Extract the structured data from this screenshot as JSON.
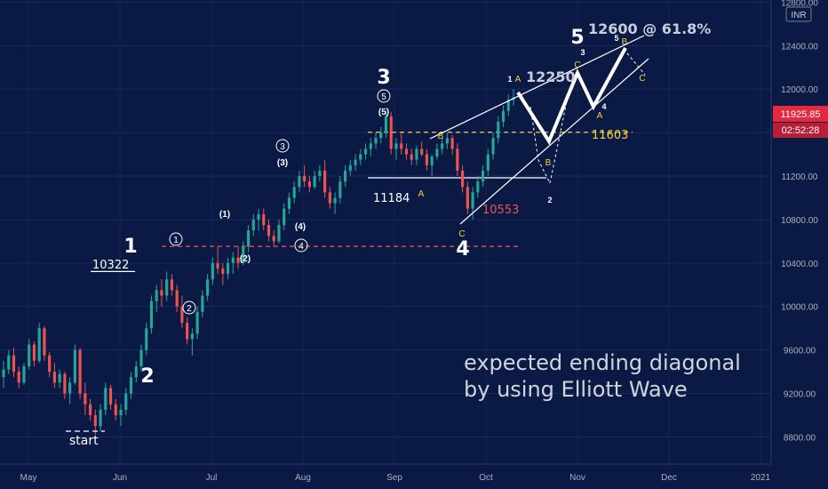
{
  "chart_data": {
    "type": "candlestick",
    "currency_badge": "INR",
    "last_price": "11925.85",
    "countdown": "02:52:28",
    "colors": {
      "background": "#0b1a44",
      "up": "#26a69a",
      "down": "#ef5350",
      "price_badge": "#e5283f",
      "annotation_yellow": "#f4d03f",
      "annotation_red": "#ef5350"
    },
    "ylim": [
      8550,
      12820
    ],
    "y_ticks": [
      8800,
      9200,
      9600,
      10000,
      10400,
      10800,
      11200,
      11600,
      12000,
      12400,
      12800
    ],
    "y_tick_labels": [
      "8800.00",
      "9200.00",
      "9600.00",
      "10000.00",
      "10400.00",
      "10800.00",
      "11200.00",
      "11600.00",
      "12000.00",
      "12400.00",
      "12800.00"
    ],
    "x_labels": [
      "May",
      "Jun",
      "Jul",
      "Aug",
      "Sep",
      "Oct",
      "Nov",
      "Dec",
      "2021"
    ],
    "candles": [
      [
        9350,
        9500,
        9250,
        9420
      ],
      [
        9420,
        9600,
        9380,
        9550
      ],
      [
        9550,
        9620,
        9350,
        9400
      ],
      [
        9400,
        9450,
        9250,
        9300
      ],
      [
        9300,
        9480,
        9280,
        9450
      ],
      [
        9450,
        9700,
        9420,
        9650
      ],
      [
        9650,
        9680,
        9450,
        9500
      ],
      [
        9500,
        9850,
        9480,
        9800
      ],
      [
        9800,
        9820,
        9500,
        9550
      ],
      [
        9550,
        9580,
        9350,
        9400
      ],
      [
        9400,
        9480,
        9250,
        9300
      ],
      [
        9300,
        9420,
        9250,
        9380
      ],
      [
        9380,
        9400,
        9150,
        9200
      ],
      [
        9200,
        9350,
        9100,
        9300
      ],
      [
        9300,
        9650,
        9280,
        9600
      ],
      [
        9600,
        9620,
        9150,
        9200
      ],
      [
        9200,
        9300,
        9000,
        9100
      ],
      [
        9100,
        9150,
        8950,
        9000
      ],
      [
        9000,
        9050,
        8820,
        8900
      ],
      [
        8900,
        9100,
        8850,
        9050
      ],
      [
        9050,
        9300,
        9000,
        9250
      ],
      [
        9250,
        9280,
        9050,
        9100
      ],
      [
        9100,
        9150,
        8950,
        9000
      ],
      [
        9000,
        9100,
        8900,
        9050
      ],
      [
        9050,
        9250,
        9000,
        9200
      ],
      [
        9200,
        9400,
        9150,
        9350
      ],
      [
        9350,
        9500,
        9300,
        9450
      ],
      [
        9450,
        9650,
        9400,
        9600
      ],
      [
        9600,
        9850,
        9550,
        9800
      ],
      [
        9800,
        10100,
        9750,
        10050
      ],
      [
        10050,
        10200,
        9950,
        10150
      ],
      [
        10150,
        10250,
        10000,
        10100
      ],
      [
        10100,
        10322,
        10050,
        10250
      ],
      [
        10250,
        10300,
        10100,
        10150
      ],
      [
        10150,
        10200,
        9950,
        10000
      ],
      [
        10000,
        10100,
        9800,
        9850
      ],
      [
        9850,
        9900,
        9650,
        9700
      ],
      [
        9700,
        9800,
        9550,
        9750
      ],
      [
        9750,
        10000,
        9700,
        9950
      ],
      [
        9950,
        10150,
        9900,
        10100
      ],
      [
        10100,
        10300,
        10050,
        10250
      ],
      [
        10250,
        10450,
        10200,
        10400
      ],
      [
        10400,
        10550,
        10300,
        10350
      ],
      [
        10350,
        10400,
        10200,
        10300
      ],
      [
        10300,
        10450,
        10250,
        10400
      ],
      [
        10400,
        10500,
        10300,
        10450
      ],
      [
        10450,
        10550,
        10350,
        10400
      ],
      [
        10400,
        10600,
        10380,
        10550
      ],
      [
        10550,
        10750,
        10500,
        10700
      ],
      [
        10700,
        10850,
        10650,
        10800
      ],
      [
        10800,
        10900,
        10700,
        10850
      ],
      [
        10850,
        10900,
        10700,
        10750
      ],
      [
        10750,
        10800,
        10600,
        10650
      ],
      [
        10650,
        10700,
        10550,
        10600
      ],
      [
        10600,
        10800,
        10580,
        10750
      ],
      [
        10750,
        10950,
        10700,
        10900
      ],
      [
        10900,
        11050,
        10850,
        11000
      ],
      [
        11000,
        11150,
        10950,
        11100
      ],
      [
        11100,
        11250,
        11050,
        11200
      ],
      [
        11200,
        11300,
        11100,
        11150
      ],
      [
        11150,
        11200,
        11050,
        11100
      ],
      [
        11100,
        11250,
        11080,
        11200
      ],
      [
        11200,
        11300,
        11150,
        11250
      ],
      [
        11250,
        11350,
        11000,
        11050
      ],
      [
        11050,
        11100,
        10900,
        10950
      ],
      [
        10950,
        11050,
        10850,
        11000
      ],
      [
        11000,
        11200,
        10950,
        11150
      ],
      [
        11150,
        11300,
        11100,
        11250
      ],
      [
        11250,
        11350,
        11200,
        11300
      ],
      [
        11300,
        11400,
        11250,
        11350
      ],
      [
        11350,
        11450,
        11300,
        11400
      ],
      [
        11400,
        11500,
        11350,
        11450
      ],
      [
        11450,
        11550,
        11380,
        11500
      ],
      [
        11500,
        11600,
        11450,
        11550
      ],
      [
        11550,
        11650,
        11500,
        11600
      ],
      [
        11600,
        11800,
        11550,
        11750
      ],
      [
        11750,
        11790,
        11400,
        11450
      ],
      [
        11450,
        11550,
        11350,
        11500
      ],
      [
        11500,
        11600,
        11400,
        11450
      ],
      [
        11450,
        11500,
        11350,
        11400
      ],
      [
        11400,
        11450,
        11300,
        11350
      ],
      [
        11350,
        11480,
        11300,
        11450
      ],
      [
        11450,
        11520,
        11380,
        11400
      ],
      [
        11400,
        11450,
        11250,
        11300
      ],
      [
        11300,
        11400,
        11200,
        11380
      ],
      [
        11380,
        11500,
        11350,
        11450
      ],
      [
        11450,
        11550,
        11400,
        11500
      ],
      [
        11500,
        11600,
        11450,
        11550
      ],
      [
        11550,
        11580,
        11400,
        11450
      ],
      [
        11450,
        11500,
        11200,
        11250
      ],
      [
        11250,
        11300,
        11050,
        11100
      ],
      [
        11100,
        11150,
        10850,
        10900
      ],
      [
        10900,
        11100,
        10800,
        11050
      ],
      [
        11050,
        11200,
        11000,
        11150
      ],
      [
        11150,
        11300,
        11100,
        11250
      ],
      [
        11250,
        11450,
        11200,
        11400
      ],
      [
        11400,
        11600,
        11350,
        11550
      ],
      [
        11550,
        11750,
        11500,
        11700
      ],
      [
        11700,
        11850,
        11650,
        11800
      ],
      [
        11800,
        11950,
        11750,
        11900
      ],
      [
        11900,
        12000,
        11850,
        11925.85
      ]
    ],
    "horizontal_lines": [
      {
        "value": 10322,
        "label": "10322",
        "style": "solid",
        "color": "#ffffff"
      },
      {
        "value": 11184,
        "label": "11184",
        "style": "solid",
        "color": "#ffffff"
      },
      {
        "value": 10553,
        "label": "10553",
        "style": "dashed",
        "color": "#ef5350"
      },
      {
        "value": 11603,
        "label": "11603",
        "style": "dashed",
        "color": "#f4d03f"
      }
    ],
    "annotations": {
      "wave_labels": [
        "1",
        "2",
        "3",
        "4",
        "5"
      ],
      "minor_circled": [
        "1",
        "2",
        "3",
        "4",
        "5"
      ],
      "minor_paren": [
        "(1)",
        "(2)",
        "(3)",
        "(4)",
        "(5)"
      ],
      "abc": [
        "A",
        "B",
        "C"
      ],
      "projection_points": [
        "1",
        "2",
        "3",
        "4",
        "5"
      ],
      "start_label": "start",
      "level_12250": "12250",
      "target_label": "12600 @ 61.8%",
      "caption_line1": "expected ending diagonal",
      "caption_line2": "by using Elliott Wave"
    }
  }
}
